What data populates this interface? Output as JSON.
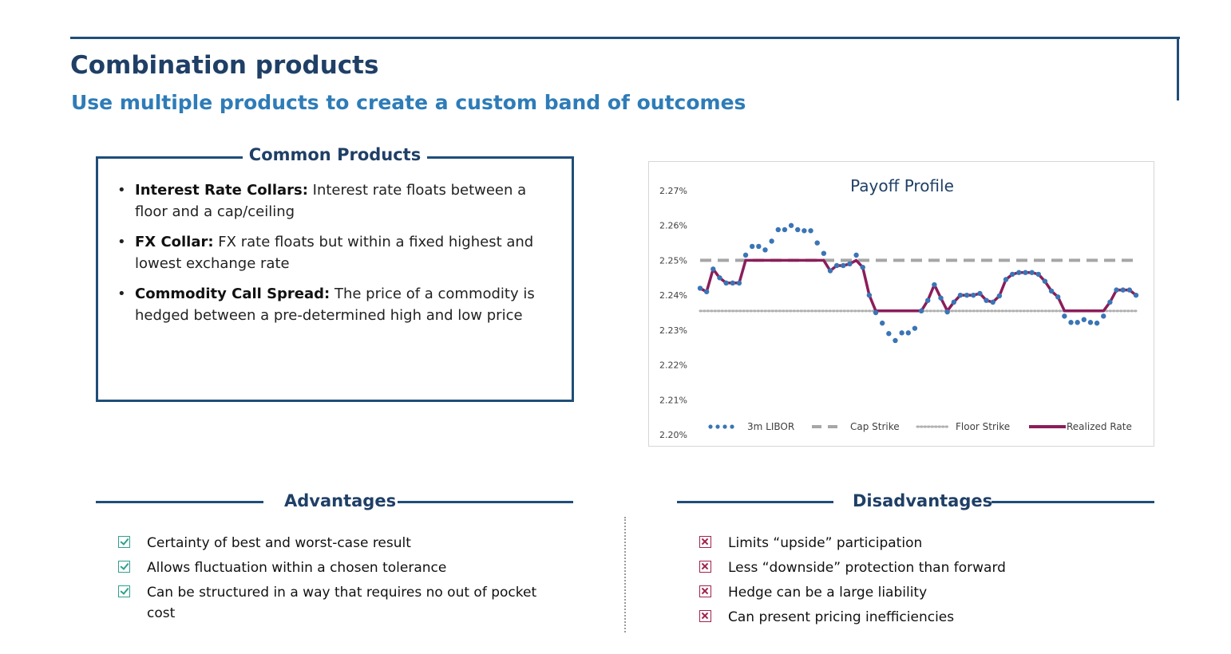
{
  "header": {
    "title": "Combination products",
    "subtitle": "Use multiple products to create a custom band of outcomes"
  },
  "common_products": {
    "heading": "Common Products",
    "items": [
      {
        "term": "Interest Rate Collars:",
        "text": " Interest rate floats between a floor and a cap/ceiling"
      },
      {
        "term": "FX Collar:",
        "text": " FX rate floats but within a fixed highest and lowest exchange rate"
      },
      {
        "term": "Commodity Call Spread:",
        "text": " The price of a commodity is hedged between a pre-determined high and low price"
      }
    ]
  },
  "advantages": {
    "heading": "Advantages",
    "items": [
      "Certainty of best and worst-case result",
      "Allows fluctuation within a chosen tolerance",
      "Can be structured in a way that requires no out of pocket cost"
    ]
  },
  "disadvantages": {
    "heading": "Disadvantages",
    "items": [
      "Limits “upside” participation",
      "Less “downside” protection than forward",
      "Hedge can be a large liability",
      "Can present pricing inefficiencies"
    ]
  },
  "colors": {
    "libor": "#3a75b5",
    "cap": "#a6a6a6",
    "floor": "#b0b0b0",
    "realized": "#8b1d5a",
    "accent": "#1f4e79"
  },
  "chart_data": {
    "type": "line",
    "title": "Payoff Profile",
    "ylim": [
      2.2,
      2.27
    ],
    "yticks": [
      "2.27%",
      "2.26%",
      "2.25%",
      "2.24%",
      "2.23%",
      "2.22%",
      "2.21%",
      "2.20%"
    ],
    "ytick_values": [
      2.27,
      2.26,
      2.25,
      2.24,
      2.23,
      2.22,
      2.21,
      2.2
    ],
    "cap_strike": 2.25,
    "floor_strike": 2.2355,
    "legend_position": "bottom",
    "series": [
      {
        "name": "3m LIBOR",
        "style": "dots",
        "values": [
          2.242,
          2.241,
          2.2475,
          2.245,
          2.2435,
          2.2435,
          2.2435,
          2.2515,
          2.254,
          2.254,
          2.253,
          2.2555,
          2.2588,
          2.2588,
          2.26,
          2.2588,
          2.2585,
          2.2585,
          2.255,
          2.252,
          2.247,
          2.2485,
          2.2485,
          2.249,
          2.2515,
          2.248,
          2.24,
          2.235,
          2.232,
          2.229,
          2.227,
          2.2292,
          2.2292,
          2.2305,
          2.2355,
          2.2385,
          2.243,
          2.2392,
          2.2352,
          2.238,
          2.24,
          2.24,
          2.24,
          2.2405,
          2.2385,
          2.238,
          2.2398,
          2.2445,
          2.246,
          2.2465,
          2.2465,
          2.2465,
          2.246,
          2.244,
          2.2412,
          2.2395,
          2.234,
          2.2322,
          2.2322,
          2.233,
          2.2322,
          2.232,
          2.234,
          2.238,
          2.2415,
          2.2415,
          2.2415,
          2.24
        ]
      },
      {
        "name": "Cap Strike",
        "style": "dashed",
        "values": [
          2.25,
          2.25
        ]
      },
      {
        "name": "Floor Strike",
        "style": "dotted",
        "values": [
          2.2355,
          2.2355
        ]
      },
      {
        "name": "Realized Rate",
        "style": "solid",
        "values": [
          2.242,
          2.241,
          2.2475,
          2.245,
          2.2435,
          2.2435,
          2.2435,
          2.25,
          2.25,
          2.25,
          2.25,
          2.25,
          2.25,
          2.25,
          2.25,
          2.25,
          2.25,
          2.25,
          2.25,
          2.25,
          2.247,
          2.2485,
          2.2485,
          2.249,
          2.25,
          2.248,
          2.24,
          2.2355,
          2.2355,
          2.2355,
          2.2355,
          2.2355,
          2.2355,
          2.2355,
          2.2355,
          2.2385,
          2.243,
          2.2392,
          2.2355,
          2.238,
          2.24,
          2.24,
          2.24,
          2.2405,
          2.2385,
          2.238,
          2.2398,
          2.2445,
          2.246,
          2.2465,
          2.2465,
          2.2465,
          2.246,
          2.244,
          2.2412,
          2.2395,
          2.2355,
          2.2355,
          2.2355,
          2.2355,
          2.2355,
          2.2355,
          2.2355,
          2.238,
          2.2415,
          2.2415,
          2.2415,
          2.24
        ]
      }
    ]
  }
}
